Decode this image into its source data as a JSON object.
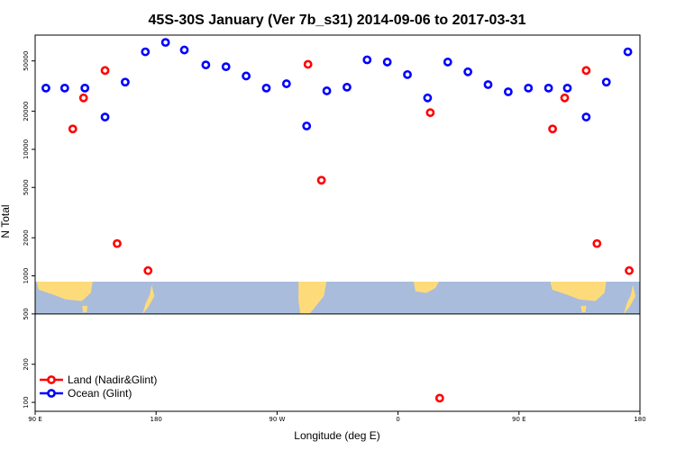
{
  "chart_data": {
    "type": "scatter",
    "title": "45S-30S January (Ver 7b_s31)   2014-09-06 to 2017-03-31",
    "xlabel": "Longitude (deg E)",
    "ylabel": "N Total",
    "y_scale": "log",
    "ylim": [
      85,
      80000
    ],
    "x_ticks": [
      {
        "value": 90,
        "label": "90 E"
      },
      {
        "value": 180,
        "label": "180"
      },
      {
        "value": 270,
        "label": "90 W"
      },
      {
        "value": 360,
        "label": "0"
      },
      {
        "value": 450,
        "label": "90 E"
      },
      {
        "value": 540,
        "label": "180"
      }
    ],
    "xlim": [
      90,
      540
    ],
    "y_ticks": [
      {
        "value": 100,
        "label": "100"
      },
      {
        "value": 200,
        "label": "200"
      },
      {
        "value": 500,
        "label": "500"
      },
      {
        "value": 1000,
        "label": "1000"
      },
      {
        "value": 2000,
        "label": "2000"
      },
      {
        "value": 5000,
        "label": "5000"
      },
      {
        "value": 10000,
        "label": "10000"
      },
      {
        "value": 20000,
        "label": "20000"
      },
      {
        "value": 50000,
        "label": "50000"
      }
    ],
    "map_strip": {
      "y_range": [
        500,
        900
      ],
      "ocean_color": "#a9bcdb",
      "land_color": "#fedb7a"
    },
    "series": [
      {
        "name": "Land (Nadir&Glint)",
        "color": "#ff0000",
        "points": [
          {
            "x": 118,
            "y": 14500
          },
          {
            "x": 126,
            "y": 25500
          },
          {
            "x": 142,
            "y": 42000
          },
          {
            "x": 151,
            "y": 1800
          },
          {
            "x": 174,
            "y": 1100
          },
          {
            "x": 293,
            "y": 47000
          },
          {
            "x": 303,
            "y": 5700
          },
          {
            "x": 384,
            "y": 19500
          },
          {
            "x": 391,
            "y": 108
          },
          {
            "x": 475,
            "y": 14500
          },
          {
            "x": 484,
            "y": 25500
          },
          {
            "x": 500,
            "y": 42000
          },
          {
            "x": 508,
            "y": 1800
          },
          {
            "x": 532,
            "y": 1100
          }
        ]
      },
      {
        "name": "Ocean (Glint)",
        "color": "#0000ff",
        "points": [
          {
            "x": 98,
            "y": 30500
          },
          {
            "x": 112,
            "y": 30500
          },
          {
            "x": 127,
            "y": 30500
          },
          {
            "x": 142,
            "y": 18000
          },
          {
            "x": 157,
            "y": 34000
          },
          {
            "x": 172,
            "y": 59000
          },
          {
            "x": 187,
            "y": 70000
          },
          {
            "x": 201,
            "y": 61000
          },
          {
            "x": 217,
            "y": 46500
          },
          {
            "x": 232,
            "y": 45000
          },
          {
            "x": 247,
            "y": 38000
          },
          {
            "x": 262,
            "y": 30500
          },
          {
            "x": 277,
            "y": 33000
          },
          {
            "x": 292,
            "y": 15300
          },
          {
            "x": 307,
            "y": 29000
          },
          {
            "x": 322,
            "y": 31000
          },
          {
            "x": 337,
            "y": 51000
          },
          {
            "x": 352,
            "y": 49000
          },
          {
            "x": 367,
            "y": 39000
          },
          {
            "x": 382,
            "y": 25500
          },
          {
            "x": 397,
            "y": 49000
          },
          {
            "x": 412,
            "y": 41000
          },
          {
            "x": 427,
            "y": 32500
          },
          {
            "x": 442,
            "y": 28500
          },
          {
            "x": 457,
            "y": 30500
          },
          {
            "x": 472,
            "y": 30500
          },
          {
            "x": 486,
            "y": 30500
          },
          {
            "x": 500,
            "y": 18000
          },
          {
            "x": 515,
            "y": 34000
          },
          {
            "x": 531,
            "y": 59000
          }
        ]
      }
    ],
    "legend": {
      "position": "bottom-left"
    }
  }
}
